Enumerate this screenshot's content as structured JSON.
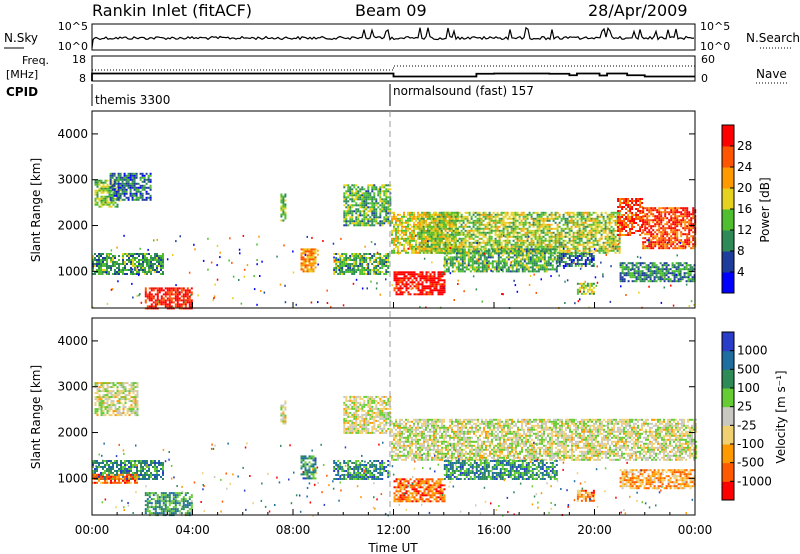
{
  "header": {
    "station": "Rankin Inlet (fitACF)",
    "beam": "Beam 09",
    "date": "28/Apr/2009"
  },
  "sky_panel": {
    "left_label": "N.Sky",
    "right_label": "N.Search",
    "left_ticks": [
      "10^5",
      "10^0"
    ],
    "right_ticks": [
      "10^5",
      "10^0"
    ]
  },
  "freq_panel": {
    "left_label_line1": "Freq.",
    "left_label_line2": "[MHz]",
    "left_ticks": [
      "18",
      "8"
    ],
    "right_ticks": [
      "60",
      "0"
    ],
    "right_label": "Nave"
  },
  "cpid": {
    "label": "CPID",
    "modes": [
      {
        "name": "themis 3300",
        "start_hour": 0
      },
      {
        "name": "normalsound (fast) 157",
        "start_hour": 12
      }
    ]
  },
  "time_axis": {
    "label": "Time UT",
    "ticks": [
      "00:00",
      "04:00",
      "08:00",
      "12:00",
      "16:00",
      "20:00",
      "00:00"
    ]
  },
  "colors": {
    "power_scale": [
      "#0000ff",
      "#1e3c9c",
      "#2e8b57",
      "#4fbf30",
      "#e6d21e",
      "#ff9900",
      "#ff5500",
      "#ff0000"
    ],
    "velocity_scale": [
      "#ff0000",
      "#ff5a00",
      "#ff9900",
      "#f0d070",
      "#c8c8c0",
      "#66cc33",
      "#2e8b57",
      "#1e6ea0",
      "#2a3dc8"
    ]
  },
  "chart_data": [
    {
      "type": "heatmap",
      "title": "",
      "xlabel": "",
      "ylabel": "Slant Range [km]",
      "xlim_hours": [
        0,
        24
      ],
      "ylim_km": [
        200,
        4500
      ],
      "yticks": [
        "1000",
        "2000",
        "3000",
        "4000"
      ],
      "colorbar_label": "Power [dB]",
      "colorbar_ticks": [
        "4",
        "8",
        "12",
        "16",
        "20",
        "24",
        "28"
      ],
      "colorbar_range": [
        0,
        32
      ],
      "regions": [
        {
          "t0": 0.1,
          "t1": 1.1,
          "r0": 2400,
          "r1": 3000,
          "level": 0.45
        },
        {
          "t0": 0.7,
          "t1": 2.3,
          "r0": 2550,
          "r1": 3150,
          "level": 0.25
        },
        {
          "t0": 0.0,
          "t1": 2.8,
          "r0": 950,
          "r1": 1400,
          "level": 0.35
        },
        {
          "t0": 2.1,
          "t1": 4.0,
          "r0": 200,
          "r1": 650,
          "level": 0.95
        },
        {
          "t0": 7.5,
          "t1": 7.7,
          "r0": 2100,
          "r1": 2700,
          "level": 0.45
        },
        {
          "t0": 8.3,
          "t1": 8.9,
          "r0": 1000,
          "r1": 1500,
          "level": 0.7
        },
        {
          "t0": 9.6,
          "t1": 11.8,
          "r0": 950,
          "r1": 1400,
          "level": 0.4
        },
        {
          "t0": 10.0,
          "t1": 11.9,
          "r0": 2000,
          "r1": 2900,
          "level": 0.4
        },
        {
          "t0": 11.9,
          "t1": 14.6,
          "r0": 1400,
          "r1": 2300,
          "level": 0.55
        },
        {
          "t0": 12.0,
          "t1": 14.0,
          "r0": 500,
          "r1": 1000,
          "level": 0.98
        },
        {
          "t0": 13.0,
          "t1": 21.0,
          "r0": 1400,
          "r1": 2300,
          "level": 0.5
        },
        {
          "t0": 14.0,
          "t1": 18.5,
          "r0": 1000,
          "r1": 1500,
          "level": 0.4
        },
        {
          "t0": 18.5,
          "t1": 20.0,
          "r0": 1100,
          "r1": 1400,
          "level": 0.25
        },
        {
          "t0": 19.3,
          "t1": 20.0,
          "r0": 500,
          "r1": 750,
          "level": 0.5
        },
        {
          "t0": 20.9,
          "t1": 21.9,
          "r0": 1800,
          "r1": 2600,
          "level": 0.85
        },
        {
          "t0": 21.9,
          "t1": 24.0,
          "r0": 1500,
          "r1": 2400,
          "level": 0.85
        },
        {
          "t0": 21.0,
          "t1": 24.0,
          "r0": 800,
          "r1": 1200,
          "level": 0.3
        }
      ]
    },
    {
      "type": "heatmap",
      "title": "",
      "xlabel": "Time UT",
      "ylabel": "Slant Range [km]",
      "xlim_hours": [
        0,
        24
      ],
      "ylim_km": [
        200,
        4500
      ],
      "yticks": [
        "1000",
        "2000",
        "3000",
        "4000"
      ],
      "colorbar_label": "Velocity [m s⁻¹]",
      "colorbar_ticks": [
        "1000",
        "500",
        "100",
        "25",
        "-25",
        "-100",
        "-500",
        "-1000"
      ],
      "colorbar_range": [
        -1000,
        1000
      ],
      "regions": [
        {
          "t0": 0.1,
          "t1": 1.8,
          "r0": 2400,
          "r1": 3100,
          "level": 0.48
        },
        {
          "t0": 0.0,
          "t1": 2.8,
          "r0": 1000,
          "r1": 1400,
          "level": 0.75
        },
        {
          "t0": 0.0,
          "t1": 1.8,
          "r0": 900,
          "r1": 1100,
          "level": 0.2
        },
        {
          "t0": 2.1,
          "t1": 4.0,
          "r0": 200,
          "r1": 700,
          "level": 0.7
        },
        {
          "t0": 7.5,
          "t1": 7.7,
          "r0": 2200,
          "r1": 2700,
          "level": 0.48
        },
        {
          "t0": 8.3,
          "t1": 8.9,
          "r0": 1000,
          "r1": 1500,
          "level": 0.75
        },
        {
          "t0": 9.6,
          "t1": 11.8,
          "r0": 1000,
          "r1": 1400,
          "level": 0.75
        },
        {
          "t0": 10.0,
          "t1": 11.9,
          "r0": 2000,
          "r1": 2800,
          "level": 0.48
        },
        {
          "t0": 11.9,
          "t1": 24.0,
          "r0": 1400,
          "r1": 2300,
          "level": 0.48
        },
        {
          "t0": 12.0,
          "t1": 14.0,
          "r0": 500,
          "r1": 1000,
          "level": 0.2
        },
        {
          "t0": 14.0,
          "t1": 18.5,
          "r0": 1000,
          "r1": 1400,
          "level": 0.75
        },
        {
          "t0": 19.3,
          "t1": 20.0,
          "r0": 500,
          "r1": 750,
          "level": 0.25
        },
        {
          "t0": 21.0,
          "t1": 24.0,
          "r0": 800,
          "r1": 1200,
          "level": 0.3
        }
      ]
    }
  ]
}
